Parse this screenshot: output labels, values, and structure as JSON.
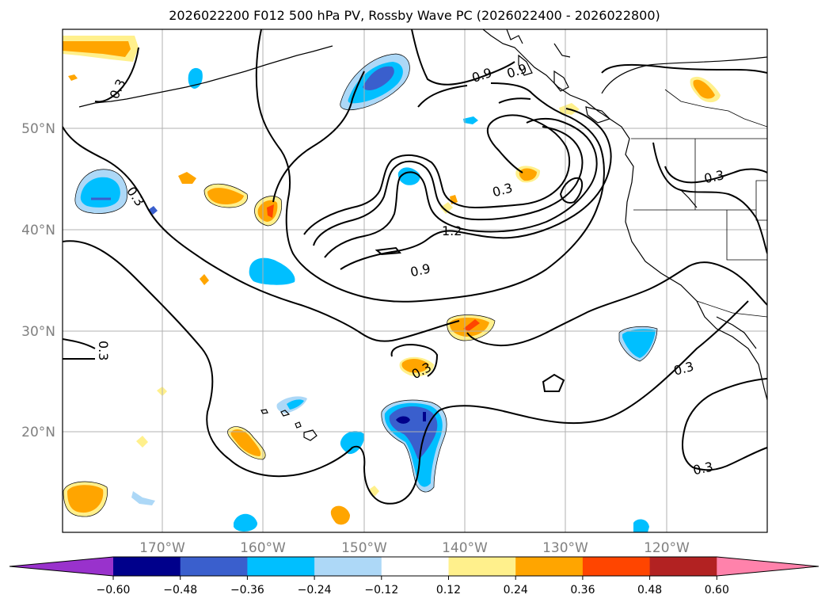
{
  "title": "2026022200 F012 500 hPa PV, Rossby Wave PC (2026022400 - 2026022800)",
  "map": {
    "lat_labels": [
      "50°N",
      "40°N",
      "30°N",
      "20°N"
    ],
    "lon_labels": [
      "170°W",
      "160°W",
      "150°W",
      "140°W",
      "130°W",
      "120°W"
    ],
    "contour_labels": [
      "0.3",
      "0.9",
      "0.9",
      "0.3",
      "1.2",
      "0.9",
      "0.3",
      "0.3",
      "0.3",
      "0.3",
      "0.3",
      "0.3"
    ]
  },
  "colorbar": {
    "ticks": [
      "−0.60",
      "−0.48",
      "−0.36",
      "−0.24",
      "−0.12",
      "0.12",
      "0.24",
      "0.36",
      "0.48",
      "0.60"
    ],
    "colors": [
      "#9932cc",
      "#00008b",
      "#3a5fcd",
      "#00bfff",
      "#add8f7",
      "#ffffff",
      "#fff08c",
      "#ffa500",
      "#ff4500",
      "#b22222",
      "#ff82ab"
    ]
  }
}
